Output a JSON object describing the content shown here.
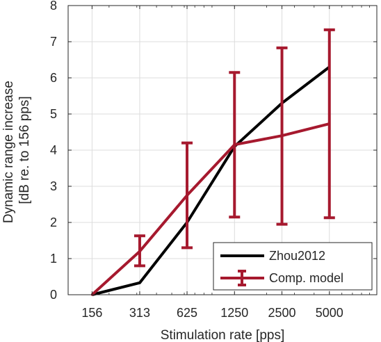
{
  "chart_data": {
    "type": "line",
    "xlabel": "Stimulation rate [pps]",
    "ylabel_lines": [
      "Dynamic range increase",
      "[dB re. to 156 pps]"
    ],
    "categories": [
      "156",
      "313",
      "625",
      "1250",
      "2500",
      "5000"
    ],
    "x": [
      156,
      313,
      625,
      1250,
      2500,
      5000
    ],
    "xlim": [
      110,
      10000
    ],
    "x_scale": "log",
    "ylim": [
      0,
      8
    ],
    "yticks": [
      0,
      1,
      2,
      3,
      4,
      5,
      6,
      7,
      8
    ],
    "grid": true,
    "legend_position": "bottom-right",
    "colors": {
      "zhou": "#000000",
      "model": "#a6192e",
      "grid": "#dcdcdc",
      "axis": "#262626"
    },
    "series": [
      {
        "name": "Zhou2012",
        "values": [
          0,
          0.33,
          2.0,
          4.1,
          5.3,
          6.3
        ],
        "color": "#000000",
        "errorbars": false
      },
      {
        "name": "Comp. model",
        "values": [
          0,
          1.2,
          2.75,
          4.15,
          4.4,
          4.73
        ],
        "lower": [
          0,
          0.8,
          1.3,
          2.15,
          1.95,
          2.13
        ],
        "upper": [
          0,
          1.63,
          4.2,
          6.15,
          6.83,
          7.33
        ],
        "color": "#a6192e",
        "errorbars": true
      }
    ]
  }
}
